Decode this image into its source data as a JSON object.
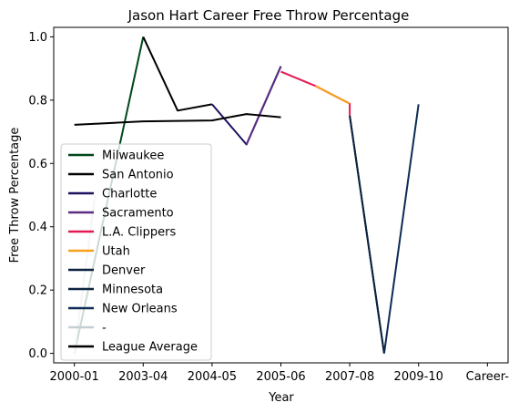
{
  "chart_data": {
    "type": "line",
    "title": "Jason Hart  Career Free Throw Percentage",
    "xlabel": "Year",
    "ylabel": "Free Throw Percentage",
    "ylim": [
      -0.03,
      1.03
    ],
    "yticks": [
      0.0,
      0.2,
      0.4,
      0.6,
      0.8,
      1.0
    ],
    "ytick_labels": [
      "0.0",
      "0.2",
      "0.4",
      "0.6",
      "0.8",
      "1.0"
    ],
    "xticks": [
      {
        "pos": 0,
        "label": "2000-01"
      },
      {
        "pos": 1,
        "label": "2003-04"
      },
      {
        "pos": 2,
        "label": "2004-05"
      },
      {
        "pos": 3,
        "label": "2005-06"
      },
      {
        "pos": 4,
        "label": "2007-08"
      },
      {
        "pos": 5,
        "label": "2009-10"
      },
      {
        "pos": 6,
        "label": "Career-"
      }
    ],
    "xlim": [
      -0.3,
      6.3
    ],
    "grid": false,
    "legend_position": "lower-left",
    "series": [
      {
        "name": "Milwaukee",
        "color": "#00471b",
        "points": [
          [
            0,
            0.0
          ],
          [
            1,
            1.0
          ]
        ]
      },
      {
        "name": "San Antonio",
        "color": "#000000",
        "points": [
          [
            1,
            1.0
          ],
          [
            1.5,
            0.767
          ],
          [
            2,
            0.787
          ]
        ]
      },
      {
        "name": "Charlotte",
        "color": "#1d1160",
        "points": [
          [
            2,
            0.787
          ],
          [
            2.5,
            0.66
          ],
          [
            3,
            0.907
          ]
        ]
      },
      {
        "name": "Sacramento",
        "color": "#5a2d81",
        "points": [
          [
            2.5,
            0.66
          ],
          [
            3,
            0.907
          ]
        ]
      },
      {
        "name": "L.A. Clippers",
        "color": "#e31a52",
        "points": [
          [
            3,
            0.89
          ],
          [
            3.5,
            0.845
          ],
          [
            4,
            0.789
          ],
          [
            4,
            0.751
          ]
        ]
      },
      {
        "name": "Utah",
        "color": "#f9a01b",
        "points": [
          [
            3.5,
            0.845
          ],
          [
            4,
            0.789
          ]
        ]
      },
      {
        "name": "Denver",
        "color": "#0d2240",
        "points": [
          [
            4,
            0.751
          ],
          [
            4.5,
            0.0
          ]
        ]
      },
      {
        "name": "Minnesota",
        "color": "#0c2340",
        "points": [
          [
            4,
            0.751
          ],
          [
            4.5,
            0.0
          ]
        ]
      },
      {
        "name": "New Orleans",
        "color": "#0c2c56",
        "points": [
          [
            4.5,
            0.0
          ],
          [
            5,
            0.787
          ]
        ]
      },
      {
        "name": "-",
        "color": "#c4ced3",
        "points": [
          [
            0,
            0.0
          ],
          [
            0.3,
            0.5
          ]
        ]
      },
      {
        "name": "League Average",
        "color": "#000000",
        "points": [
          [
            0,
            0.722
          ],
          [
            1,
            0.733
          ],
          [
            2,
            0.736
          ],
          [
            2.5,
            0.756
          ],
          [
            3,
            0.746
          ]
        ]
      }
    ]
  }
}
